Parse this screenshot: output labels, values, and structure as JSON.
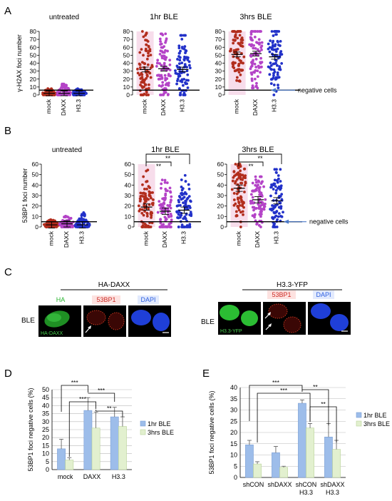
{
  "panel_labels": {
    "a": "A",
    "b": "B",
    "c": "C",
    "d": "D",
    "e": "E"
  },
  "colors": {
    "mock": "#b22d1d",
    "daxx": "#b443c7",
    "h33": "#2231c9",
    "band": "#f4cfe3",
    "bar1": "#9dbdea",
    "bar2": "#e2f0cf",
    "arrow": "#4a78c8",
    "ha_green": "#28b52f",
    "red53": "#cc2b25",
    "dapi": "#2d5fe0"
  },
  "panel_a": {
    "ylabel": "γ-H2AX foci number",
    "negative_label": "negative cells",
    "cutoff": 6,
    "ylim": [
      0,
      80
    ],
    "ticks": [
      0,
      10,
      20,
      30,
      40,
      50,
      60,
      70,
      80
    ],
    "groups": [
      {
        "title": "untreated",
        "means": [
          2,
          2,
          2
        ],
        "spread": [
          8,
          14,
          8
        ]
      },
      {
        "title": "1hr BLE",
        "means": [
          32,
          33,
          32
        ],
        "spread": [
          80,
          77,
          75
        ]
      },
      {
        "title": "3hrs BLE",
        "means": [
          51,
          52,
          48
        ],
        "spread": [
          80,
          80,
          80
        ]
      }
    ],
    "categories": [
      "mock",
      "DAXX",
      "H3.3"
    ]
  },
  "panel_b": {
    "ylabel": "53BP1 foci number",
    "negative_label": "negative cells",
    "cutoff": 5,
    "ylim": [
      0,
      60
    ],
    "ticks": [
      0,
      10,
      20,
      30,
      40,
      50,
      60
    ],
    "groups": [
      {
        "title": "untreated",
        "means": [
          2,
          3,
          2
        ],
        "spread": [
          7,
          11,
          14
        ]
      },
      {
        "title": "1hr BLE",
        "means": [
          19,
          15,
          16
        ],
        "spread": [
          60,
          58,
          58
        ]
      },
      {
        "title": "3hrs BLE",
        "means": [
          37,
          26,
          25
        ],
        "spread": [
          60,
          48,
          55
        ]
      }
    ],
    "categories": [
      "mock",
      "DAXX",
      "H3.3"
    ],
    "sig": "**"
  },
  "panel_c": {
    "left_title": "HA-DAXX",
    "right_title": "H3.3-YFP",
    "row_label": "BLE",
    "left_channels": [
      "HA",
      "53BP1",
      "DAPI"
    ],
    "right_channels": [
      "",
      "53BP1",
      "DAPI"
    ],
    "left_overlay": "HA-DAXX",
    "right_overlay": "H3.3-YFP"
  },
  "chart_data": [
    {
      "type": "bar",
      "title": "",
      "ylabel": "53BP1 foci negative cells (%)",
      "categories": [
        "mock",
        "DAXX",
        "H3.3"
      ],
      "series": [
        {
          "name": "1hr BLE",
          "values": [
            13,
            37,
            33
          ],
          "error": [
            6,
            8,
            6
          ]
        },
        {
          "name": "3hrs BLE",
          "values": [
            6,
            26,
            27
          ],
          "error": [
            1.5,
            10,
            6
          ]
        }
      ],
      "ylim": [
        0,
        50
      ],
      "ticks": [
        0,
        5,
        10,
        15,
        20,
        25,
        30,
        35,
        40,
        45,
        50
      ],
      "sig": [
        "***",
        "***",
        "***",
        "**"
      ]
    },
    {
      "type": "bar",
      "title": "",
      "ylabel": "53BP1 foci negative cells (%)",
      "categories": [
        "shCON",
        "shDAXX",
        "shCON\nH3.3",
        "shDAXX\nH3.3"
      ],
      "series": [
        {
          "name": "1hr BLE",
          "values": [
            14.5,
            11,
            33,
            18
          ],
          "error": [
            2,
            2.8,
            1.5,
            6
          ]
        },
        {
          "name": "3hrs BLE",
          "values": [
            6,
            4.5,
            22,
            12.5
          ],
          "error": [
            1,
            0.5,
            2,
            4
          ]
        }
      ],
      "ylim": [
        0,
        40
      ],
      "ticks": [
        0,
        5,
        10,
        15,
        20,
        25,
        30,
        35,
        40
      ],
      "sig": [
        "***",
        "***",
        "**",
        "**"
      ]
    }
  ]
}
